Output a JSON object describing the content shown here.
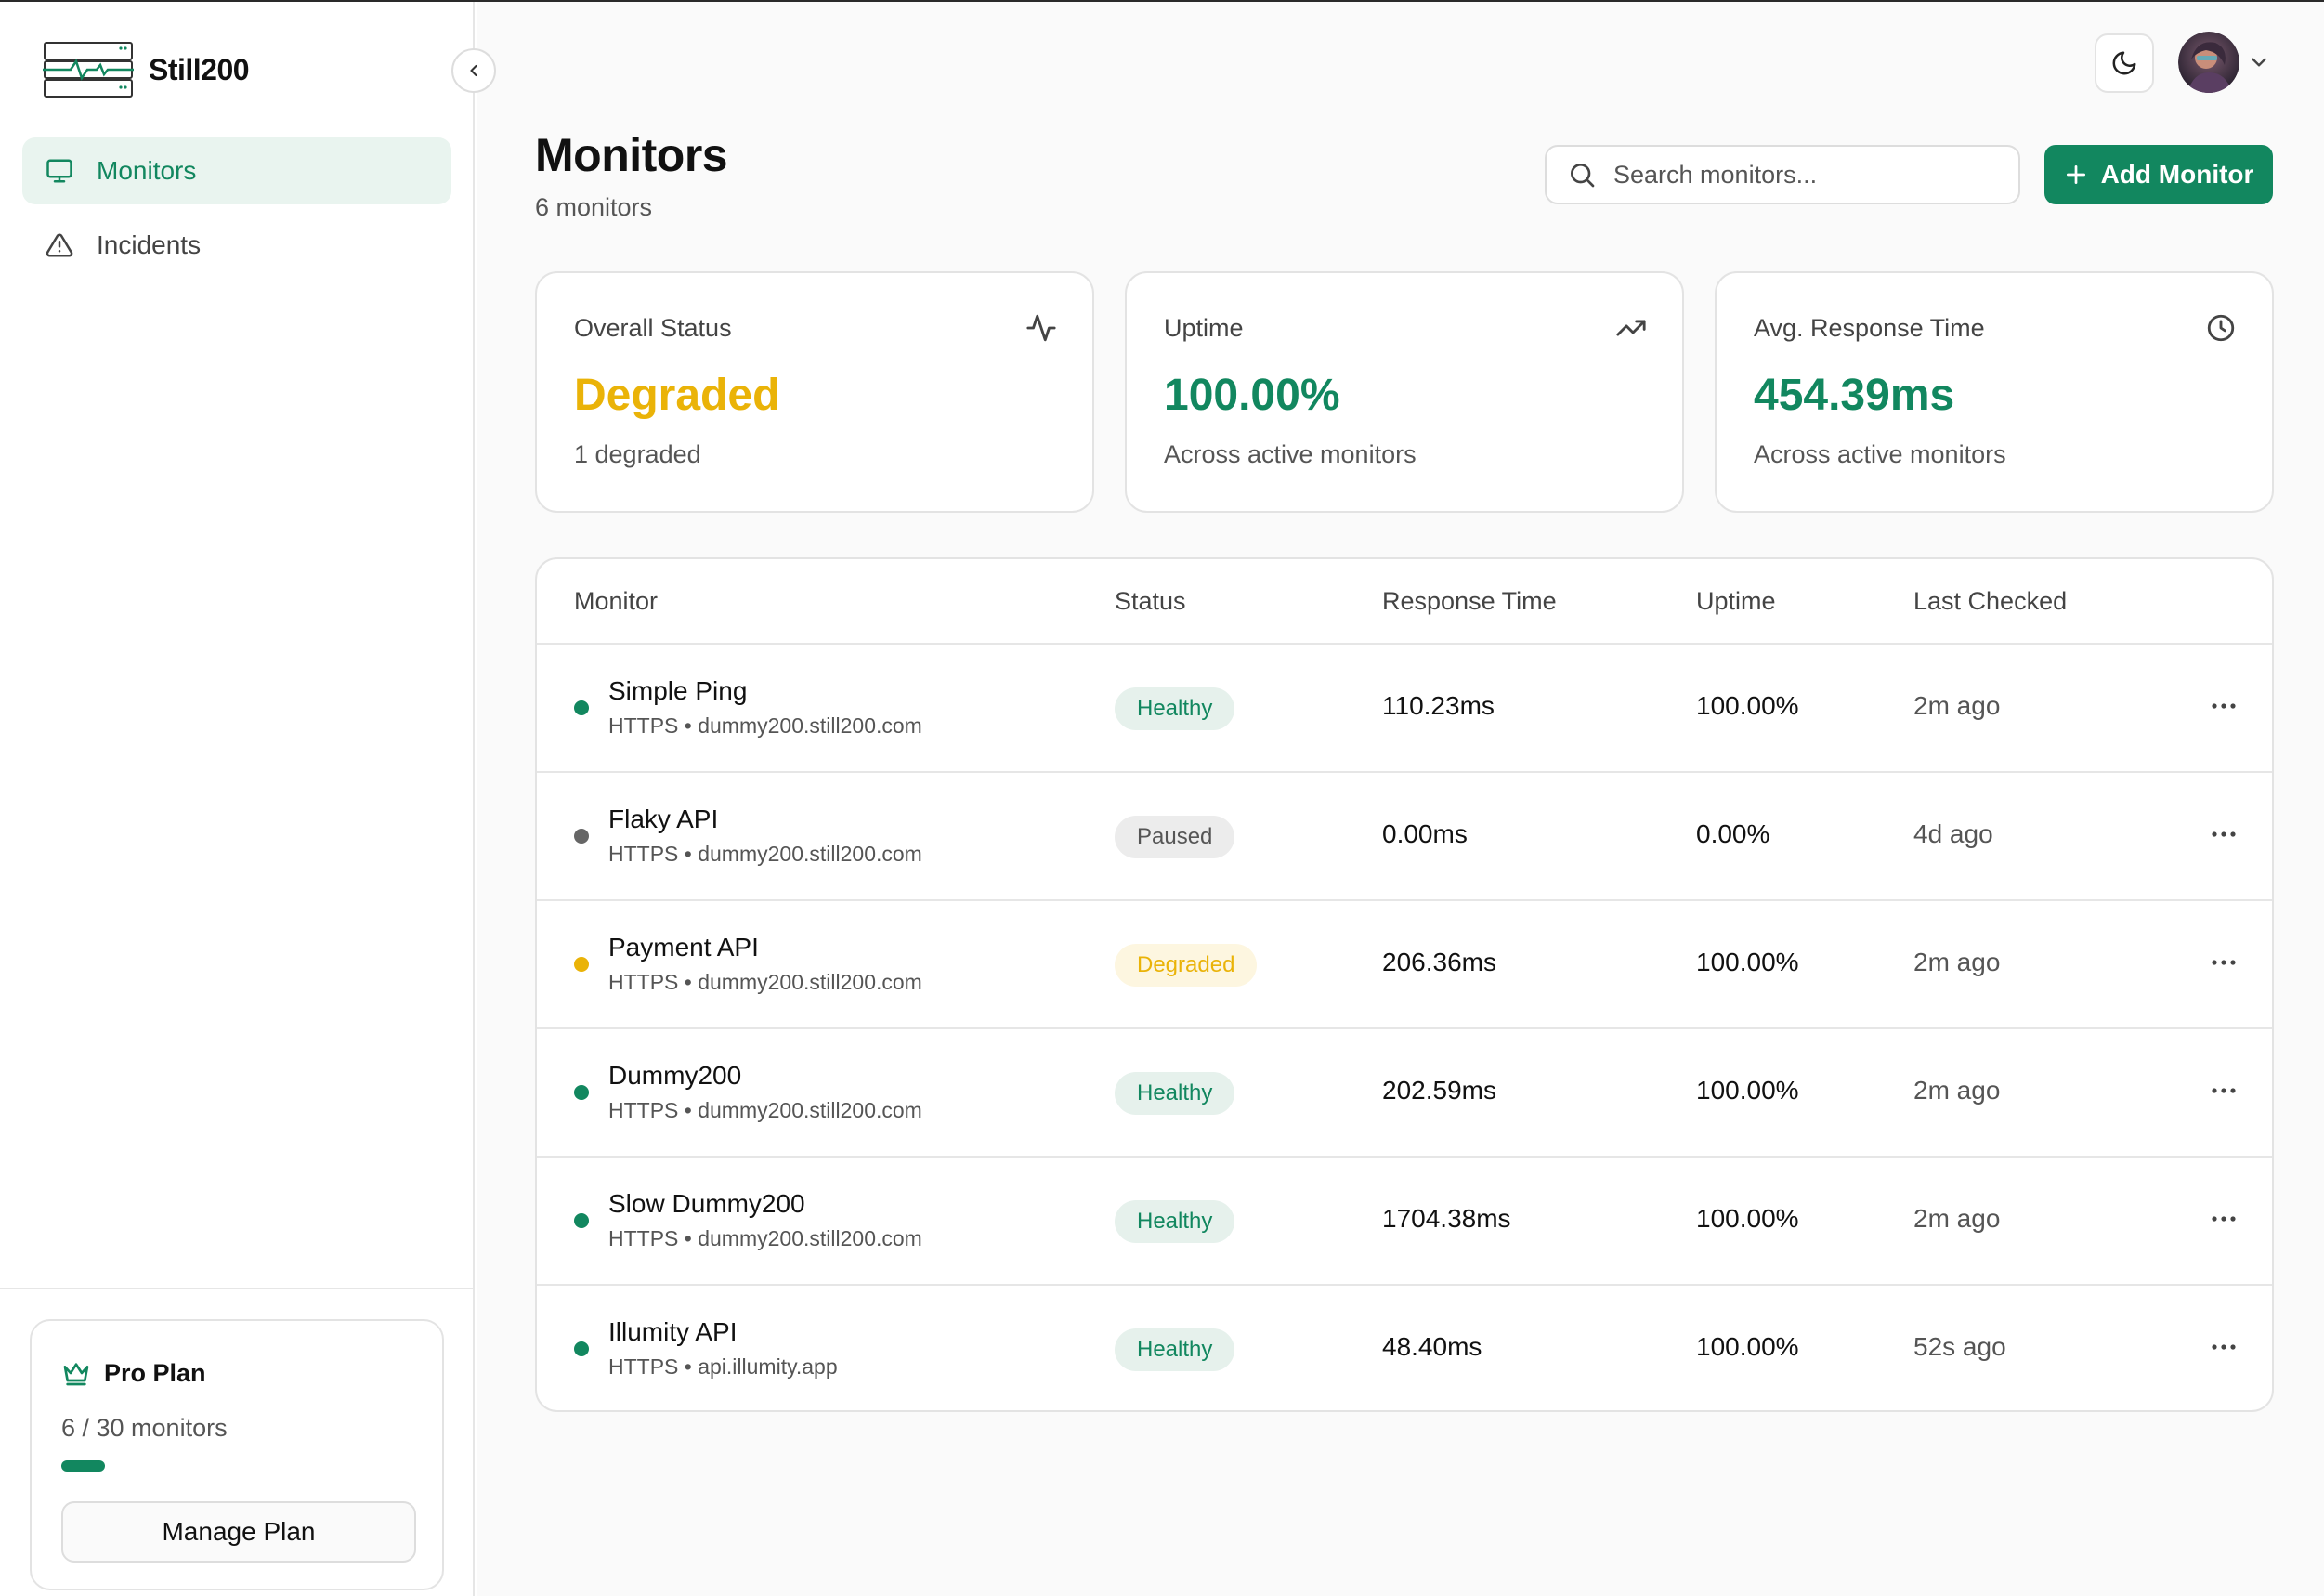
{
  "brand": {
    "name": "Still200"
  },
  "sidebar": {
    "items": [
      {
        "label": "Monitors",
        "icon": "monitor-icon",
        "active": true
      },
      {
        "label": "Incidents",
        "icon": "alert-triangle-icon",
        "active": false
      }
    ],
    "plan": {
      "title": "Pro Plan",
      "usage": "6 / 30 monitors",
      "used_fraction": 0.2,
      "button_label": "Manage Plan"
    }
  },
  "header": {
    "title": "Monitors",
    "subtitle": "6 monitors",
    "search_placeholder": "Search monitors...",
    "add_label": "Add Monitor"
  },
  "stats": [
    {
      "label": "Overall Status",
      "value": "Degraded",
      "sub": "1 degraded",
      "icon": "activity-icon",
      "color": "#eab308"
    },
    {
      "label": "Uptime",
      "value": "100.00%",
      "sub": "Across active monitors",
      "icon": "trending-up-icon",
      "color": "#12875f"
    },
    {
      "label": "Avg. Response Time",
      "value": "454.39ms",
      "sub": "Across active monitors",
      "icon": "clock-icon",
      "color": "#12875f"
    }
  ],
  "table": {
    "columns": [
      "Monitor",
      "Status",
      "Response Time",
      "Uptime",
      "Last Checked"
    ],
    "rows": [
      {
        "name": "Simple Ping",
        "sub": "HTTPS • dummy200.still200.com",
        "status": "Healthy",
        "response": "110.23ms",
        "uptime": "100.00%",
        "last": "2m ago"
      },
      {
        "name": "Flaky API",
        "sub": "HTTPS • dummy200.still200.com",
        "status": "Paused",
        "response": "0.00ms",
        "uptime": "0.00%",
        "last": "4d ago"
      },
      {
        "name": "Payment API",
        "sub": "HTTPS • dummy200.still200.com",
        "status": "Degraded",
        "response": "206.36ms",
        "uptime": "100.00%",
        "last": "2m ago"
      },
      {
        "name": "Dummy200",
        "sub": "HTTPS • dummy200.still200.com",
        "status": "Healthy",
        "response": "202.59ms",
        "uptime": "100.00%",
        "last": "2m ago"
      },
      {
        "name": "Slow Dummy200",
        "sub": "HTTPS • dummy200.still200.com",
        "status": "Healthy",
        "response": "1704.38ms",
        "uptime": "100.00%",
        "last": "2m ago"
      },
      {
        "name": "Illumity API",
        "sub": "HTTPS • api.illumity.app",
        "status": "Healthy",
        "response": "48.40ms",
        "uptime": "100.00%",
        "last": "52s ago"
      }
    ]
  },
  "colors": {
    "accent": "#12875f",
    "healthy": "#12875f",
    "paused": "#666666",
    "degraded": "#eab308"
  }
}
